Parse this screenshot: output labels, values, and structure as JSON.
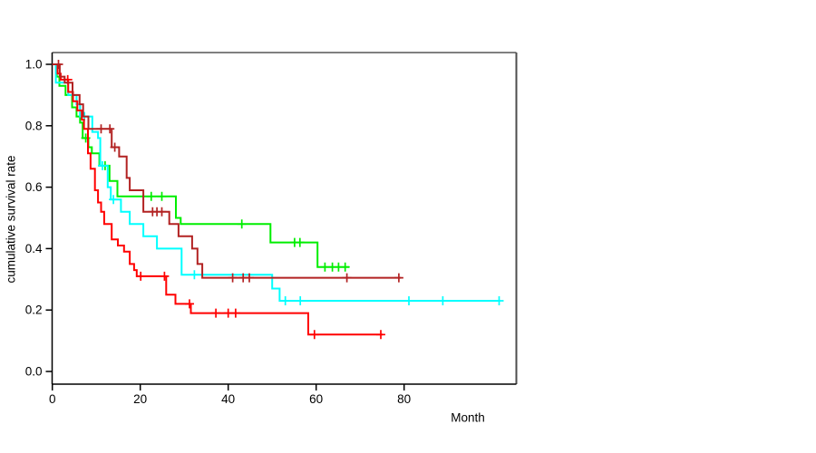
{
  "chart_data": {
    "type": "line",
    "subtype": "kaplan-meier-step-curves",
    "title": "",
    "xlabel": "Month",
    "ylabel": "cumulative survival rate",
    "xlim": [
      0,
      105.5
    ],
    "ylim": [
      0,
      1.0
    ],
    "grid": false,
    "legend": "none",
    "x_ticks": [
      0,
      20,
      40,
      60,
      80
    ],
    "x_tick_labels": [
      "0",
      "20",
      "40",
      "60",
      "80"
    ],
    "y_ticks": [
      0.0,
      0.2,
      0.4,
      0.6,
      0.8,
      1.0
    ],
    "y_tick_labels": [
      "0.0",
      "0.2",
      "0.4",
      "0.6",
      "0.8",
      "1.0"
    ],
    "frame": {
      "axis_color": "#000000",
      "top_border_color": "#808080",
      "right_border_color": "#4d4d4d",
      "background": "#ffffff"
    },
    "series": [
      {
        "name": "arm-green",
        "color": "#00EE00",
        "end_month": 67.5,
        "steps": [
          [
            0,
            1.0
          ],
          [
            1.0,
            0.96
          ],
          [
            1.6,
            0.93
          ],
          [
            3.0,
            0.9
          ],
          [
            4.5,
            0.86
          ],
          [
            5.5,
            0.83
          ],
          [
            6.3,
            0.81
          ],
          [
            6.9,
            0.76
          ],
          [
            8.2,
            0.73
          ],
          [
            9.0,
            0.71
          ],
          [
            10.7,
            0.67
          ],
          [
            13.0,
            0.62
          ],
          [
            14.8,
            0.57
          ],
          [
            28.1,
            0.5
          ],
          [
            29.2,
            0.48
          ],
          [
            49.6,
            0.42
          ],
          [
            60.3,
            0.34
          ]
        ],
        "censors": [
          [
            7.6,
            0.76
          ],
          [
            12.0,
            0.67
          ],
          [
            22.5,
            0.57
          ],
          [
            24.9,
            0.57
          ],
          [
            43.1,
            0.48
          ],
          [
            55.1,
            0.42
          ],
          [
            56.3,
            0.42
          ],
          [
            62.0,
            0.34
          ],
          [
            63.7,
            0.34
          ],
          [
            65.1,
            0.34
          ],
          [
            66.6,
            0.34
          ]
        ]
      },
      {
        "name": "arm-cyan",
        "color": "#00FFFF",
        "end_month": 101.9,
        "steps": [
          [
            0,
            1.0
          ],
          [
            0.8,
            0.94
          ],
          [
            3.6,
            0.9
          ],
          [
            5.5,
            0.87
          ],
          [
            6.3,
            0.83
          ],
          [
            9.1,
            0.78
          ],
          [
            10.4,
            0.76
          ],
          [
            10.9,
            0.67
          ],
          [
            12.6,
            0.6
          ],
          [
            13.3,
            0.56
          ],
          [
            15.6,
            0.52
          ],
          [
            17.6,
            0.48
          ],
          [
            20.7,
            0.44
          ],
          [
            23.8,
            0.4
          ],
          [
            29.4,
            0.315
          ],
          [
            50.0,
            0.27
          ],
          [
            51.7,
            0.23
          ]
        ],
        "censors": [
          [
            7.3,
            0.83
          ],
          [
            11.4,
            0.67
          ],
          [
            13.9,
            0.56
          ],
          [
            32.3,
            0.315
          ],
          [
            53.0,
            0.23
          ],
          [
            56.4,
            0.23
          ],
          [
            81.1,
            0.23
          ],
          [
            88.8,
            0.23
          ],
          [
            101.6,
            0.23
          ]
        ]
      },
      {
        "name": "arm-red",
        "color": "#FF0000",
        "end_month": 75.2,
        "steps": [
          [
            0,
            1.0
          ],
          [
            1.2,
            0.97
          ],
          [
            1.9,
            0.95
          ],
          [
            3.6,
            0.91
          ],
          [
            4.7,
            0.88
          ],
          [
            5.7,
            0.85
          ],
          [
            6.7,
            0.82
          ],
          [
            7.2,
            0.79
          ],
          [
            8.1,
            0.71
          ],
          [
            8.7,
            0.66
          ],
          [
            9.7,
            0.59
          ],
          [
            10.4,
            0.55
          ],
          [
            11.1,
            0.52
          ],
          [
            11.8,
            0.48
          ],
          [
            13.5,
            0.43
          ],
          [
            14.9,
            0.41
          ],
          [
            16.3,
            0.39
          ],
          [
            17.6,
            0.35
          ],
          [
            18.6,
            0.33
          ],
          [
            19.2,
            0.31
          ],
          [
            25.9,
            0.25
          ],
          [
            28.0,
            0.22
          ],
          [
            31.5,
            0.19
          ],
          [
            58.2,
            0.12
          ]
        ],
        "censors": [
          [
            3.5,
            0.95
          ],
          [
            20.1,
            0.31
          ],
          [
            25.5,
            0.31
          ],
          [
            31.2,
            0.22
          ],
          [
            37.2,
            0.19
          ],
          [
            40.0,
            0.19
          ],
          [
            41.7,
            0.19
          ],
          [
            59.6,
            0.12
          ],
          [
            74.7,
            0.12
          ]
        ]
      },
      {
        "name": "arm-darkred",
        "color": "#B22222",
        "end_month": 79.3,
        "steps": [
          [
            0,
            1.0
          ],
          [
            1.7,
            0.96
          ],
          [
            2.8,
            0.94
          ],
          [
            4.6,
            0.9
          ],
          [
            6.2,
            0.87
          ],
          [
            7.0,
            0.83
          ],
          [
            8.2,
            0.79
          ],
          [
            13.5,
            0.73
          ],
          [
            15.2,
            0.7
          ],
          [
            16.9,
            0.63
          ],
          [
            17.6,
            0.59
          ],
          [
            20.7,
            0.52
          ],
          [
            26.6,
            0.48
          ],
          [
            28.7,
            0.44
          ],
          [
            31.8,
            0.4
          ],
          [
            33.0,
            0.35
          ],
          [
            34.1,
            0.305
          ]
        ],
        "censors": [
          [
            1.4,
            1.0
          ],
          [
            11.1,
            0.79
          ],
          [
            13.1,
            0.79
          ],
          [
            14.2,
            0.73
          ],
          [
            22.8,
            0.52
          ],
          [
            23.8,
            0.52
          ],
          [
            24.9,
            0.52
          ],
          [
            41.0,
            0.305
          ],
          [
            43.4,
            0.305
          ],
          [
            44.8,
            0.305
          ],
          [
            67.0,
            0.305
          ],
          [
            78.8,
            0.305
          ]
        ]
      }
    ]
  }
}
